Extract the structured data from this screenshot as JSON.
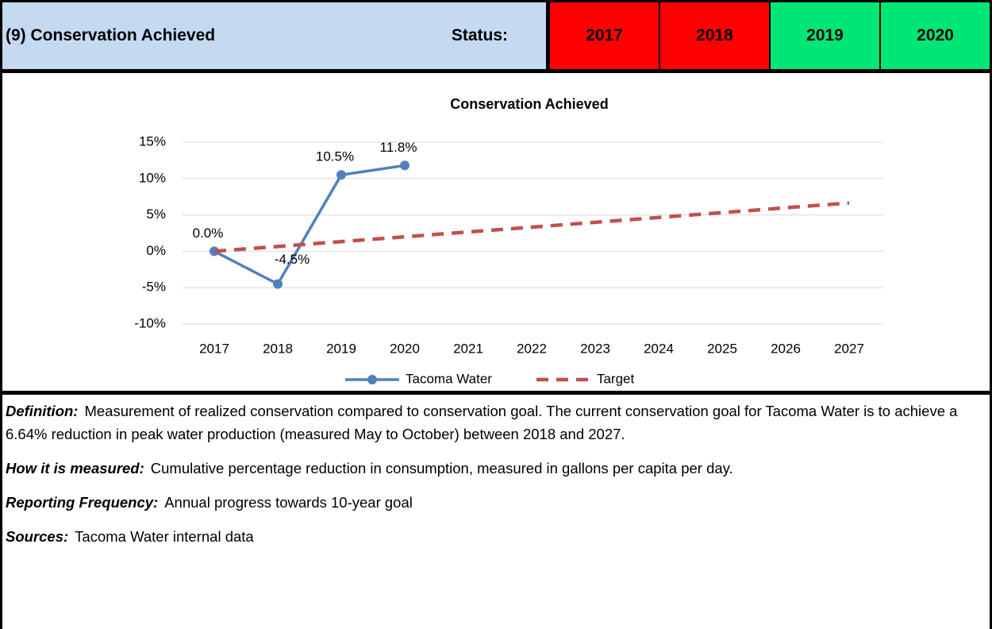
{
  "header": {
    "title": "(9) Conservation Achieved",
    "status_label": "Status:",
    "statuses": [
      {
        "year": "2017",
        "color": "#ff0000"
      },
      {
        "year": "2018",
        "color": "#ff0000"
      },
      {
        "year": "2019",
        "color": "#00e676"
      },
      {
        "year": "2020",
        "color": "#00e676"
      }
    ]
  },
  "chart_data": {
    "type": "line",
    "title": "Conservation Achieved",
    "categories": [
      "2017",
      "2018",
      "2019",
      "2020",
      "2021",
      "2022",
      "2023",
      "2024",
      "2025",
      "2026",
      "2027"
    ],
    "series": [
      {
        "name": "Tacoma Water",
        "color": "#4f81bd",
        "style": "solid",
        "marker": true,
        "values": [
          0,
          -4.5,
          10.5,
          11.8,
          null,
          null,
          null,
          null,
          null,
          null,
          null
        ],
        "value_labels": [
          "0.0%",
          "-4.5%",
          "10.5%",
          "11.8%",
          null,
          null,
          null,
          null,
          null,
          null,
          null
        ]
      },
      {
        "name": "Target",
        "color": "#c0504d",
        "style": "dashed",
        "marker": false,
        "values": [
          0,
          0.66,
          1.33,
          1.99,
          2.66,
          3.32,
          3.98,
          4.65,
          5.31,
          5.98,
          6.64
        ]
      }
    ],
    "ylim": [
      -10,
      15
    ],
    "yticks": [
      {
        "value": -10,
        "label": "-10%"
      },
      {
        "value": -5,
        "label": "-5%"
      },
      {
        "value": 0,
        "label": "0%"
      },
      {
        "value": 5,
        "label": "5%"
      },
      {
        "value": 10,
        "label": "10%"
      },
      {
        "value": 15,
        "label": "15%"
      }
    ],
    "grid": true,
    "legend": "bottom"
  },
  "notes": [
    {
      "label": "Definition:",
      "text": "Measurement of realized conservation compared to conservation goal. The current conservation goal for Tacoma Water is to achieve a 6.64% reduction in peak water production (measured May to October) between 2018 and 2027."
    },
    {
      "label": "How it is measured:",
      "text": "Cumulative percentage reduction in consumption, measured in gallons per capita per day."
    },
    {
      "label": "Reporting Frequency:",
      "text": "Annual progress towards 10-year goal"
    },
    {
      "label": "Sources:",
      "text": "Tacoma Water internal data"
    }
  ]
}
